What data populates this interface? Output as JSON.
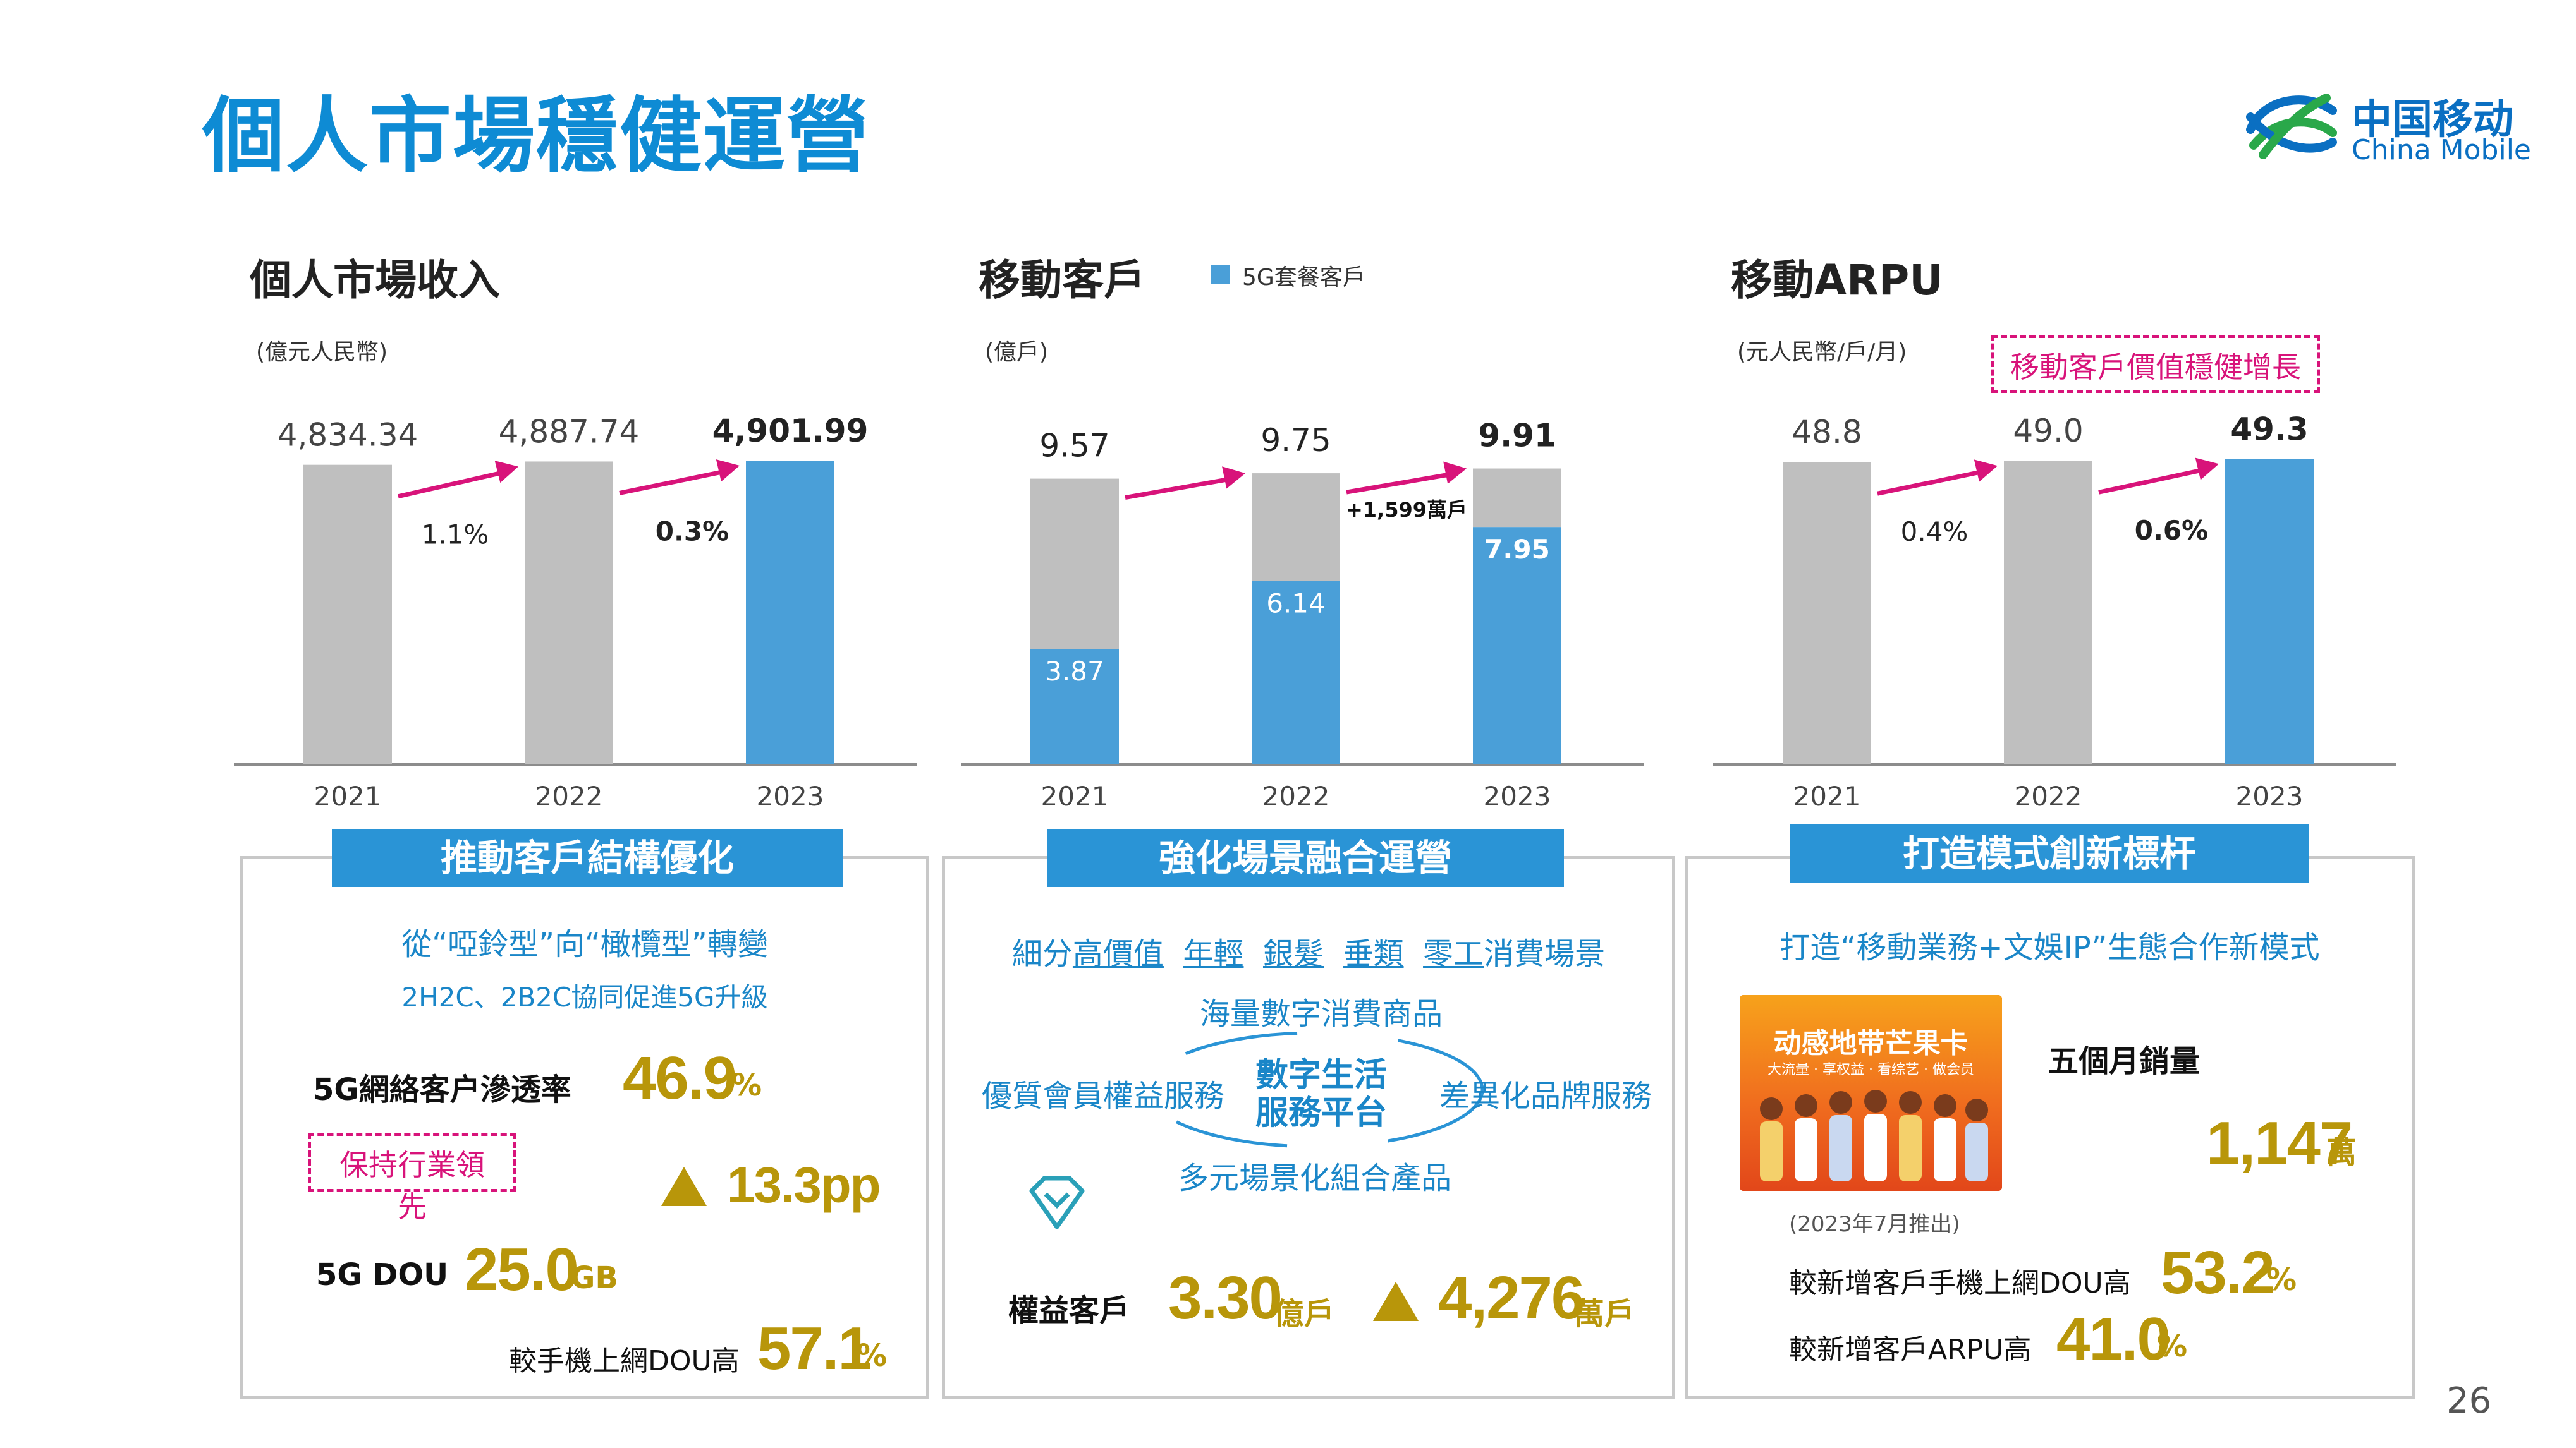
{
  "page": {
    "title": "個人市場穩健運營",
    "page_number": "26",
    "logo_cn": "中国移动",
    "logo_en": "China Mobile"
  },
  "colors": {
    "gray_bar": "#bfbfbf",
    "blue_bar": "#4a9fd8",
    "arrow": "#d8137a",
    "gold": "#b8960a",
    "title_blue": "#0e8bd4"
  },
  "chart_data": [
    {
      "type": "bar",
      "title": "個人市場收入",
      "unit": "(億元人民幣)",
      "categories": [
        "2021",
        "2022",
        "2023"
      ],
      "values": [
        4834.34,
        4887.74,
        4901.99
      ],
      "value_labels": [
        "4,834.34",
        "4,887.74",
        "4,901.99"
      ],
      "growth_labels": [
        "1.1%",
        "0.3%"
      ],
      "ylim": [
        0,
        5300
      ]
    },
    {
      "type": "bar",
      "title": "移動客戶",
      "unit": "(億戶)",
      "legend": "5G套餐客戶",
      "categories": [
        "2021",
        "2022",
        "2023"
      ],
      "series": [
        {
          "name": "5G套餐客戶",
          "values": [
            3.87,
            6.14,
            7.95
          ],
          "labels": [
            "3.87",
            "6.14",
            "7.95"
          ]
        }
      ],
      "totals": [
        9.57,
        9.75,
        9.91
      ],
      "total_labels": [
        "9.57",
        "9.75",
        "9.91"
      ],
      "annotation": "+1,599萬戶",
      "ylim": [
        0,
        11.0
      ]
    },
    {
      "type": "bar",
      "title": "移動ARPU",
      "unit": "(元人民幣/戶/月)",
      "tag": "移動客戶價值穩健增長",
      "categories": [
        "2021",
        "2022",
        "2023"
      ],
      "values": [
        48.8,
        49.0,
        49.3
      ],
      "value_labels": [
        "48.8",
        "49.0",
        "49.3"
      ],
      "growth_labels": [
        "0.4%",
        "0.6%"
      ],
      "ylim": [
        0,
        53
      ]
    }
  ],
  "panel1": {
    "banner": "推動客戶結構優化",
    "line1": "從“啞鈴型”向“橄欖型”轉變",
    "line2": "2H2C、2B2C協同促進5G升級",
    "penetration_label": "5G網絡客户滲透率",
    "penetration_value": "46.9",
    "penetration_unit": "%",
    "tag": "保持行業領先",
    "increase_value": "13.3pp",
    "dou_label": "5G DOU",
    "dou_value": "25.0",
    "dou_unit": "GB",
    "dou_compare_label": "較手機上網DOU高",
    "dou_compare_value": "57.1",
    "dou_compare_unit": "%"
  },
  "panel2": {
    "banner": "強化場景融合運營",
    "line1_prefix": "細分",
    "line1_segments": [
      "高價值",
      "年輕",
      "銀髮",
      "垂類",
      "零工"
    ],
    "line1_suffix": "消費場景",
    "top": "海量數字消費商品",
    "left": "優質會員權益服務",
    "center_line1": "數字生活",
    "center_line2": "服務平台",
    "right": "差異化品牌服務",
    "bottom": "多元場景化組合產品",
    "rights_label": "權益客戶",
    "rights_value": "3.30",
    "rights_unit": "億戶",
    "rights_increase_value": "4,276",
    "rights_increase_unit": "萬戶"
  },
  "panel3": {
    "banner": "打造模式創新標杆",
    "line1": "打造“移動業務+文娛IP”生態合作新模式",
    "promo_title": "动感地带芒果卡",
    "promo_sub": "大流量 · 享权益 · 看综艺 · 做会员",
    "sales_label": "五個月銷量",
    "sales_value": "1,147",
    "sales_unit": "萬",
    "launch_note": "(2023年7月推出)",
    "dou_label": "較新增客戶手機上網DOU高",
    "dou_value": "53.2",
    "dou_unit": "%",
    "arpu_label": "較新增客戶ARPU高",
    "arpu_value": "41.0",
    "arpu_unit": "%"
  }
}
